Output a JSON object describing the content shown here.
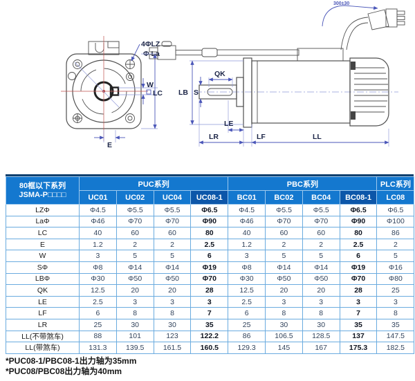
{
  "diagram": {
    "front_view": {
      "bolt_holes": "4ΦLZ",
      "pilot_dia": "Φ La",
      "keyway_width": "W",
      "flange_width": "LC",
      "shaft_offset": "E"
    },
    "side_view": {
      "flange_height": "LB",
      "shaft_dia": "S",
      "keyway_length": "QK",
      "le": "LE",
      "shaft_length": "LR",
      "lf": "LF",
      "body_length": "LL",
      "cable_length": "300±30"
    }
  },
  "table": {
    "corner_line1": "80框以下系列",
    "corner_line2": "JSMA-P□□□□",
    "groups": [
      {
        "label": "PUC系列",
        "span": 4
      },
      {
        "label": "PBC系列",
        "span": 4
      },
      {
        "label": "PLC系列",
        "span": 1
      }
    ],
    "models": [
      "UC01",
      "UC02",
      "UC04",
      "UC08-1",
      "BC01",
      "BC02",
      "BC04",
      "BC08-1",
      "LC08"
    ],
    "highlight_columns": [
      3,
      7
    ],
    "rows": [
      {
        "label": "LZΦ",
        "values": [
          "Φ4.5",
          "Φ5.5",
          "Φ5.5",
          "Φ6.5",
          "Φ4.5",
          "Φ5.5",
          "Φ5.5",
          "Φ6.5",
          "Φ6.5"
        ]
      },
      {
        "label": "LaΦ",
        "values": [
          "Φ46",
          "Φ70",
          "Φ70",
          "Φ90",
          "Φ46",
          "Φ70",
          "Φ70",
          "Φ90",
          "Φ100"
        ]
      },
      {
        "label": "LC",
        "values": [
          "40",
          "60",
          "60",
          "80",
          "40",
          "60",
          "60",
          "80",
          "86"
        ]
      },
      {
        "label": "E",
        "values": [
          "1.2",
          "2",
          "2",
          "2.5",
          "1.2",
          "2",
          "2",
          "2.5",
          "2"
        ]
      },
      {
        "label": "W",
        "values": [
          "3",
          "5",
          "5",
          "6",
          "3",
          "5",
          "5",
          "6",
          "5"
        ]
      },
      {
        "label": "SΦ",
        "values": [
          "Φ8",
          "Φ14",
          "Φ14",
          "Φ19",
          "Φ8",
          "Φ14",
          "Φ14",
          "Φ19",
          "Φ16"
        ]
      },
      {
        "label": "LBΦ",
        "values": [
          "Φ30",
          "Φ50",
          "Φ50",
          "Φ70",
          "Φ30",
          "Φ50",
          "Φ50",
          "Φ70",
          "Φ80"
        ]
      },
      {
        "label": "QK",
        "values": [
          "12.5",
          "20",
          "20",
          "28",
          "12.5",
          "20",
          "20",
          "28",
          "25"
        ]
      },
      {
        "label": "LE",
        "values": [
          "2.5",
          "3",
          "3",
          "3",
          "2.5",
          "3",
          "3",
          "3",
          "3"
        ]
      },
      {
        "label": "LF",
        "values": [
          "6",
          "8",
          "8",
          "7",
          "6",
          "8",
          "8",
          "7",
          "8"
        ]
      },
      {
        "label": "LR",
        "values": [
          "25",
          "30",
          "30",
          "35",
          "25",
          "30",
          "30",
          "35",
          "35"
        ]
      },
      {
        "label": "LL(不带煞车)",
        "values": [
          "88",
          "101",
          "123",
          "122.2",
          "86",
          "106.5",
          "128.5",
          "137",
          "147.5"
        ]
      },
      {
        "label": "LL(带煞车)",
        "values": [
          "131.3",
          "139.5",
          "161.5",
          "160.5",
          "129.3",
          "145",
          "167",
          "175.3",
          "182.5"
        ]
      }
    ]
  },
  "footnotes": [
    "*PUC08-1/PBC08-1出力轴为35mm",
    "*PUC08/PBC08出力轴为40mm"
  ],
  "colors": {
    "header_bg": "#1478cf",
    "header_highlight_bg": "#0c56a9",
    "grid_line": "#6aabdf",
    "top_border": "#10406f",
    "dimension_line": "#4a56b8",
    "centerline": "#c0504d"
  }
}
